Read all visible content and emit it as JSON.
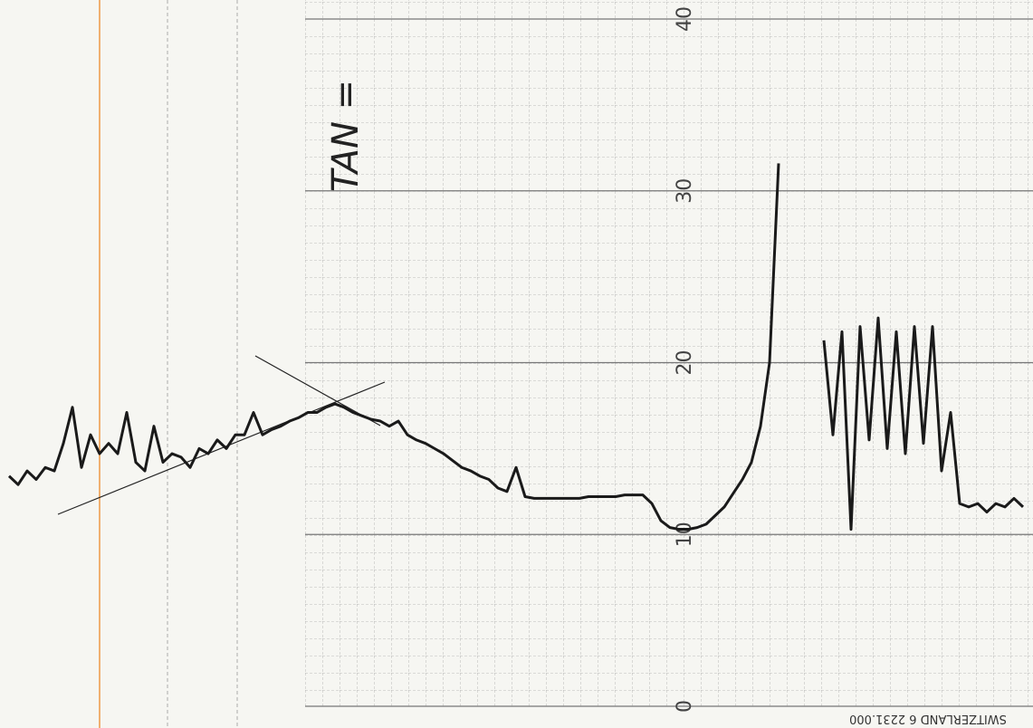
{
  "chart_data": {
    "type": "line",
    "annotation": "TAN =",
    "imprint": "SWITZERLAND 6 2231.000",
    "ylim": [
      0,
      40
    ],
    "yticks": [
      0,
      10,
      20,
      30,
      40
    ],
    "grid": true,
    "color": "#1a1a1a",
    "values": [
      13.4,
      12.9,
      13.7,
      13.2,
      13.9,
      13.7,
      15.3,
      17.4,
      13.9,
      15.8,
      14.7,
      15.3,
      14.7,
      17.1,
      14.2,
      13.7,
      16.3,
      14.2,
      14.7,
      14.5,
      13.9,
      15.0,
      14.7,
      15.5,
      15.0,
      15.8,
      15.8,
      17.1,
      15.8,
      16.1,
      16.3,
      16.6,
      16.8,
      17.1,
      17.1,
      17.4,
      17.6,
      17.4,
      17.1,
      16.9,
      16.7,
      16.6,
      16.3,
      16.6,
      15.8,
      15.5,
      15.3,
      15.0,
      14.7,
      14.3,
      13.9,
      13.7,
      13.4,
      13.2,
      12.7,
      12.5,
      13.9,
      12.2,
      12.1,
      12.1,
      12.1,
      12.1,
      12.1,
      12.1,
      12.2,
      12.2,
      12.2,
      12.2,
      12.3,
      12.3,
      12.3,
      11.8,
      10.8,
      10.4,
      10.3,
      10.3,
      10.4,
      10.6,
      11.1,
      11.6,
      12.4,
      13.2,
      14.2,
      16.3,
      20.0,
      31.6,
      null,
      null,
      null,
      null,
      21.3,
      15.8,
      21.8,
      10.3,
      22.1,
      15.5,
      22.6,
      15.0,
      21.8,
      14.7,
      22.1,
      15.3,
      22.1,
      13.7,
      17.1,
      11.8,
      11.6,
      11.8,
      11.3,
      11.8,
      11.6,
      12.1,
      11.6
    ]
  }
}
